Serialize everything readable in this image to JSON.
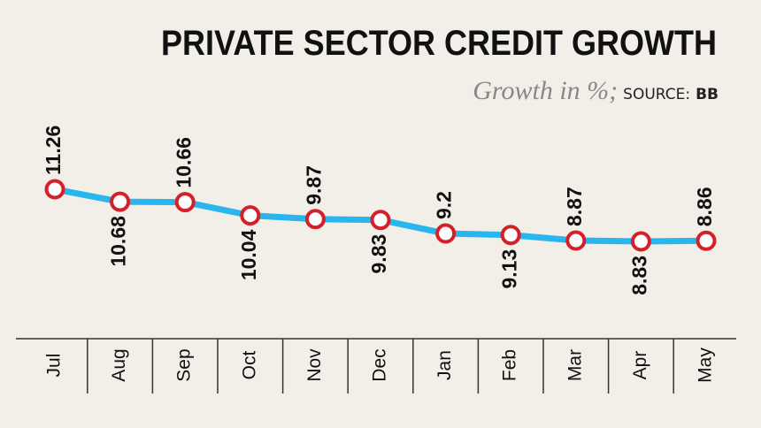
{
  "chart_data": {
    "type": "line",
    "title": "PRIVATE SECTOR CREDIT GROWTH",
    "subtitle": "Growth in %;",
    "source_label": "SOURCE:",
    "source": "BB",
    "categories": [
      "Jul",
      "Aug",
      "Sep",
      "Oct",
      "Nov",
      "Dec",
      "Jan",
      "Feb",
      "Mar",
      "Apr",
      "May"
    ],
    "values": [
      11.26,
      10.68,
      10.66,
      10.04,
      9.87,
      9.83,
      9.2,
      9.13,
      8.87,
      8.83,
      8.86
    ],
    "color": "#29b6ef",
    "marker_color": "#d42028"
  }
}
